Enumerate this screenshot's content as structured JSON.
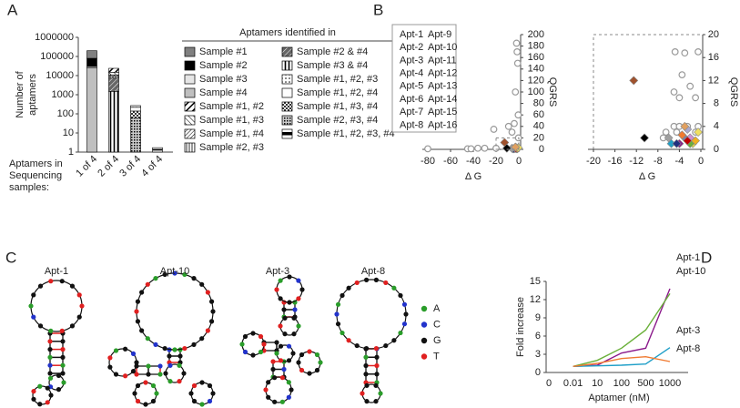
{
  "panel_labels": [
    "A",
    "B",
    "C",
    "D"
  ],
  "structures": {
    "titles": [
      {
        "text": "Apt-1",
        "color": "#8b1a8b"
      },
      {
        "text": "Apt-10",
        "color": "#6ab03a"
      },
      {
        "text": "Apt-3",
        "color": "#1f9fc8"
      },
      {
        "text": "Apt-8",
        "color": "#f07a30"
      }
    ],
    "legend": [
      {
        "label": "A",
        "color": "#2a9d2a"
      },
      {
        "label": "C",
        "color": "#2233cc"
      },
      {
        "label": "G",
        "color": "#111111"
      },
      {
        "label": "T",
        "color": "#e02020"
      }
    ]
  },
  "chart_data": [
    {
      "type": "bar",
      "stacked": true,
      "log_scale": true,
      "ylabel_lines": [
        "Number of",
        "aptamers"
      ],
      "xlabel_lines": [
        "Aptamers in",
        "Sequencing",
        "samples:"
      ],
      "legend_title": "Aptamers identified in",
      "categories": [
        "1 of 4",
        "2 of 4",
        "3 of 4",
        "4 of 4"
      ],
      "ylim": [
        1,
        1000000
      ],
      "yticks": [
        1,
        10,
        100,
        1000,
        10000,
        100000,
        1000000
      ],
      "series": [
        {
          "name": "Sample #1",
          "fill": "#808080",
          "values": [
            120000,
            null,
            null,
            null
          ]
        },
        {
          "name": "Sample #2",
          "fill": "#000000",
          "values": [
            50000,
            null,
            null,
            null
          ]
        },
        {
          "name": "Sample #3",
          "fill": "#e6e6e6",
          "values": [
            5000,
            null,
            null,
            null
          ]
        },
        {
          "name": "Sample #4",
          "fill": "#bfbfbf",
          "values": [
            25000,
            null,
            null,
            null
          ]
        },
        {
          "name": "Sample #1, #2",
          "fill": "hatch-bold",
          "values": [
            null,
            9000,
            null,
            null
          ]
        },
        {
          "name": "Sample #1, #3",
          "fill": "hatch-rev",
          "values": [
            null,
            4000,
            null,
            null
          ]
        },
        {
          "name": "Sample #1, #4",
          "fill": "hatch-dense",
          "values": [
            null,
            1500,
            null,
            null
          ]
        },
        {
          "name": "Sample #2, #3",
          "fill": "vlines",
          "values": [
            null,
            2000,
            null,
            null
          ]
        },
        {
          "name": "Sample #2 & #4",
          "fill": "dark-diag",
          "values": [
            null,
            6000,
            null,
            null
          ]
        },
        {
          "name": "Sample #3 & #4",
          "fill": "vlines-bold",
          "values": [
            null,
            1500,
            null,
            null
          ]
        },
        {
          "name": "Sample #1, #2, #3",
          "fill": "dots",
          "values": [
            null,
            null,
            50,
            null
          ]
        },
        {
          "name": "Sample #1, #2, #4",
          "fill": "#ffffff",
          "values": [
            null,
            null,
            80,
            null
          ]
        },
        {
          "name": "Sample #1, #3, #4",
          "fill": "checker",
          "values": [
            null,
            null,
            80,
            null
          ]
        },
        {
          "name": "Sample #2, #3, #4",
          "fill": "checker2",
          "values": [
            null,
            null,
            60,
            null
          ]
        },
        {
          "name": "Sample #1, #2, #3, #4",
          "fill": "half",
          "values": [
            null,
            null,
            null,
            1.7
          ]
        }
      ]
    },
    {
      "type": "scatter",
      "xlabel": "Δ G",
      "ylabel": "QGRS",
      "legend": "upper left",
      "xlim": [
        -80,
        0
      ],
      "ylim": [
        0,
        200
      ],
      "xticks": [
        -80,
        -60,
        -40,
        -20,
        0
      ],
      "yticks": [
        0,
        20,
        40,
        60,
        80,
        100,
        120,
        140,
        160,
        180,
        200
      ],
      "series": [
        {
          "color": "#999999",
          "marker": "circle",
          "x": [
            -80,
            -45,
            -42,
            -36,
            -30,
            -22,
            -20,
            -9,
            -6,
            -4,
            -3,
            -2,
            -1.5,
            -1,
            -0.5,
            -0.3
          ],
          "y": [
            1,
            1,
            1,
            2,
            2,
            35,
            2,
            40,
            30,
            45,
            100,
            185,
            170,
            150,
            60,
            20
          ]
        },
        {
          "name": "Apt-1",
          "color": "#8b1a8b",
          "marker": "diamond",
          "x": [
            -4
          ],
          "y": [
            1
          ]
        },
        {
          "name": "Apt-2",
          "color": "#7f7f9f",
          "marker": "diamond",
          "x": [
            -3
          ],
          "y": [
            2
          ]
        },
        {
          "name": "Apt-3",
          "color": "#1f9fc8",
          "marker": "diamond",
          "x": [
            -5.5
          ],
          "y": [
            1
          ]
        },
        {
          "name": "Apt-4",
          "color": "#a0522d",
          "marker": "diamond",
          "x": [
            -12.5
          ],
          "y": [
            12
          ]
        },
        {
          "name": "Apt-5",
          "color": "#a9a9d0",
          "marker": "diamond",
          "x": [
            -2.5
          ],
          "y": [
            3.5
          ]
        },
        {
          "name": "Apt-6",
          "color": "#e8e040",
          "marker": "diamond",
          "x": [
            -1.5
          ],
          "y": [
            1
          ]
        },
        {
          "name": "Apt-7",
          "color": "#1f2f7f",
          "marker": "diamond",
          "x": [
            -4.5
          ],
          "y": [
            1
          ]
        },
        {
          "name": "Apt-8",
          "color": "#f07a30",
          "marker": "diamond",
          "x": [
            -3.5
          ],
          "y": [
            2.5
          ]
        },
        {
          "name": "Apt-9",
          "color": "#d090d0",
          "marker": "diamond",
          "x": [
            -2
          ],
          "y": [
            2
          ]
        },
        {
          "name": "Apt-10",
          "color": "#6ab03a",
          "marker": "diamond",
          "x": [
            -2
          ],
          "y": [
            1
          ]
        },
        {
          "name": "Apt-11",
          "color": "#c00000",
          "marker": "diamond",
          "x": [
            -2.5
          ],
          "y": [
            1.5
          ]
        },
        {
          "name": "Apt-12",
          "color": "#f0b020",
          "marker": "diamond",
          "x": [
            -1
          ],
          "y": [
            1.5
          ]
        },
        {
          "name": "Apt-13",
          "color": "#f0e060",
          "marker": "diamond",
          "x": [
            -0.5
          ],
          "y": [
            3
          ]
        },
        {
          "name": "Apt-14",
          "color": "#a0a0a0",
          "marker": "diamond",
          "x": [
            -6
          ],
          "y": [
            2
          ]
        },
        {
          "name": "Apt-15",
          "color": "#e0a060",
          "marker": "diamond",
          "x": [
            -3
          ],
          "y": [
            4
          ]
        },
        {
          "name": "Apt-16",
          "color": "#000000",
          "marker": "diamond",
          "x": [
            -10.5
          ],
          "y": [
            2
          ]
        }
      ]
    },
    {
      "type": "scatter",
      "xlabel": "Δ G",
      "ylabel": "QGRS",
      "frame": "dashed",
      "xlim": [
        -20,
        0
      ],
      "ylim": [
        0,
        20
      ],
      "xticks": [
        -20,
        -16,
        -12,
        -8,
        -4,
        0
      ],
      "yticks": [
        0,
        4,
        8,
        12,
        16,
        20
      ],
      "series": [
        {
          "color": "#999999",
          "marker": "circle",
          "x": [
            -4.8,
            -3,
            -0.5,
            -3.5,
            -2,
            -4,
            -5,
            -1,
            -6.5,
            -5,
            -4,
            -2.5,
            -1,
            -0.5,
            -7,
            -4.5
          ],
          "y": [
            17,
            16.8,
            17,
            13,
            11,
            9,
            10,
            9,
            3,
            4,
            4,
            4,
            3,
            4,
            2,
            3
          ]
        },
        {
          "color": "#8b1a8b",
          "marker": "diamond",
          "x": [
            -4
          ],
          "y": [
            1
          ]
        },
        {
          "color": "#7f7f9f",
          "marker": "diamond",
          "x": [
            -3
          ],
          "y": [
            2
          ]
        },
        {
          "color": "#1f9fc8",
          "marker": "diamond",
          "x": [
            -5.5
          ],
          "y": [
            1
          ]
        },
        {
          "color": "#a0522d",
          "marker": "diamond",
          "x": [
            -12.5
          ],
          "y": [
            12
          ]
        },
        {
          "color": "#a9a9d0",
          "marker": "diamond",
          "x": [
            -2.5
          ],
          "y": [
            3.5
          ]
        },
        {
          "color": "#e8e040",
          "marker": "diamond",
          "x": [
            -1.5
          ],
          "y": [
            1
          ]
        },
        {
          "color": "#1f2f7f",
          "marker": "diamond",
          "x": [
            -4.5
          ],
          "y": [
            1
          ]
        },
        {
          "color": "#f07a30",
          "marker": "diamond",
          "x": [
            -3.5
          ],
          "y": [
            2.5
          ]
        },
        {
          "color": "#d090d0",
          "marker": "diamond",
          "x": [
            -2
          ],
          "y": [
            2
          ]
        },
        {
          "color": "#6ab03a",
          "marker": "diamond",
          "x": [
            -2
          ],
          "y": [
            1
          ]
        },
        {
          "color": "#c00000",
          "marker": "diamond",
          "x": [
            -2.5
          ],
          "y": [
            1.5
          ]
        },
        {
          "color": "#f0b020",
          "marker": "diamond",
          "x": [
            -1
          ],
          "y": [
            1.5
          ]
        },
        {
          "color": "#f0e060",
          "marker": "diamond",
          "x": [
            -0.5
          ],
          "y": [
            3
          ]
        },
        {
          "color": "#a0a0a0",
          "marker": "diamond",
          "x": [
            -6
          ],
          "y": [
            2
          ]
        },
        {
          "color": "#e0a060",
          "marker": "diamond",
          "x": [
            -3
          ],
          "y": [
            4
          ]
        },
        {
          "color": "#000000",
          "marker": "diamond",
          "x": [
            -10.5
          ],
          "y": [
            2
          ]
        }
      ]
    },
    {
      "type": "line",
      "xlabel": "Aptamer (nM)",
      "ylabel": "Fold increase",
      "categories": [
        "0",
        "0.01",
        "10",
        "100",
        "500",
        "1000"
      ],
      "ylim": [
        0,
        15
      ],
      "yticks": [
        0,
        3,
        6,
        9,
        12,
        15
      ],
      "series": [
        {
          "name": "Apt-1",
          "color": "#8b1a8b",
          "values": [
            null,
            1,
            1.2,
            3.2,
            4,
            13.8
          ]
        },
        {
          "name": "Apt-10",
          "color": "#6ab03a",
          "values": [
            null,
            1,
            2,
            4,
            7,
            13
          ]
        },
        {
          "name": "Apt-3",
          "color": "#1f9fc8",
          "values": [
            null,
            1,
            1.1,
            1.2,
            1.4,
            4.1
          ]
        },
        {
          "name": "Apt-8",
          "color": "#f07a30",
          "values": [
            null,
            1,
            1.5,
            2.3,
            2.6,
            1.8
          ]
        }
      ]
    }
  ]
}
